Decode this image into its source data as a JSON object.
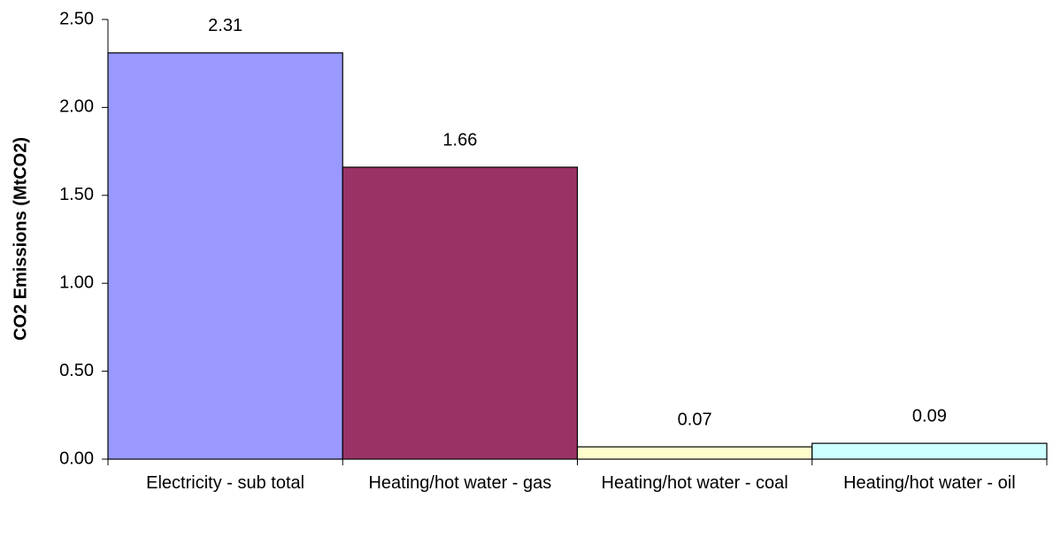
{
  "chart_data": {
    "type": "bar",
    "y_label": "CO2 Emissions (MtCO2)",
    "categories": [
      "Electricity - sub total",
      "Heating/hot water - gas",
      "Heating/hot water - coal",
      "Heating/hot water - oil"
    ],
    "values": [
      2.31,
      1.66,
      0.07,
      0.09
    ],
    "colors": [
      "#9999ff",
      "#993366",
      "#ffffcc",
      "#ccffff"
    ],
    "ylim": [
      0,
      2.5
    ],
    "yticks": [
      {
        "value": 0,
        "label": "0.00"
      },
      {
        "value": 0.5,
        "label": "0.50"
      },
      {
        "value": 1,
        "label": "1.00"
      },
      {
        "value": 1.5,
        "label": "1.50"
      },
      {
        "value": 2,
        "label": "2.00"
      },
      {
        "value": 2.5,
        "label": "2.50"
      }
    ]
  }
}
